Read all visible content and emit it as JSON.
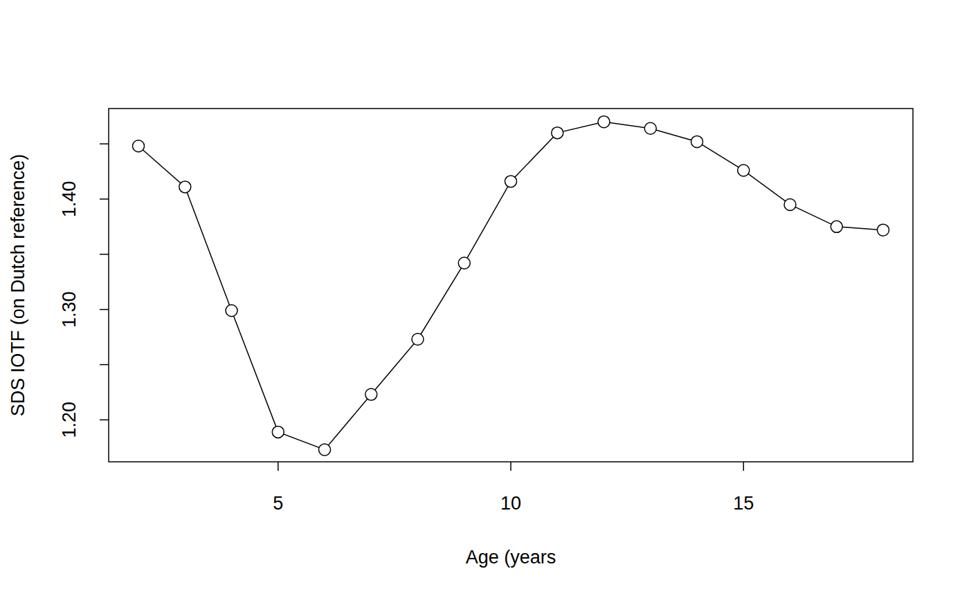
{
  "chart_data": {
    "type": "line",
    "x_label": "Age (years",
    "y_label": "SDS IOTF (on Dutch reference)",
    "x": [
      2,
      3,
      4,
      5,
      6,
      7,
      8,
      9,
      10,
      11,
      12,
      13,
      14,
      15,
      16,
      17,
      18
    ],
    "series": [
      {
        "name": "SDS IOTF",
        "color": "#000000",
        "marker": "circle",
        "line_style": "solid",
        "values": [
          1.448,
          1.411,
          1.299,
          1.189,
          1.173,
          1.223,
          1.273,
          1.342,
          1.416,
          1.46,
          1.47,
          1.464,
          1.452,
          1.426,
          1.395,
          1.375,
          1.372
        ]
      }
    ],
    "xlim": [
      1.36,
      18.64
    ],
    "xticks": [
      5,
      10,
      15
    ],
    "ylim": [
      1.162,
      1.482
    ],
    "yticks": [
      {
        "value": 1.2,
        "label": "1.20"
      },
      {
        "value": 1.25,
        "label": null
      },
      {
        "value": 1.3,
        "label": "1.30"
      },
      {
        "value": 1.35,
        "label": null
      },
      {
        "value": 1.4,
        "label": "1.40"
      },
      {
        "value": 1.45,
        "label": null
      }
    ],
    "grid": false
  }
}
